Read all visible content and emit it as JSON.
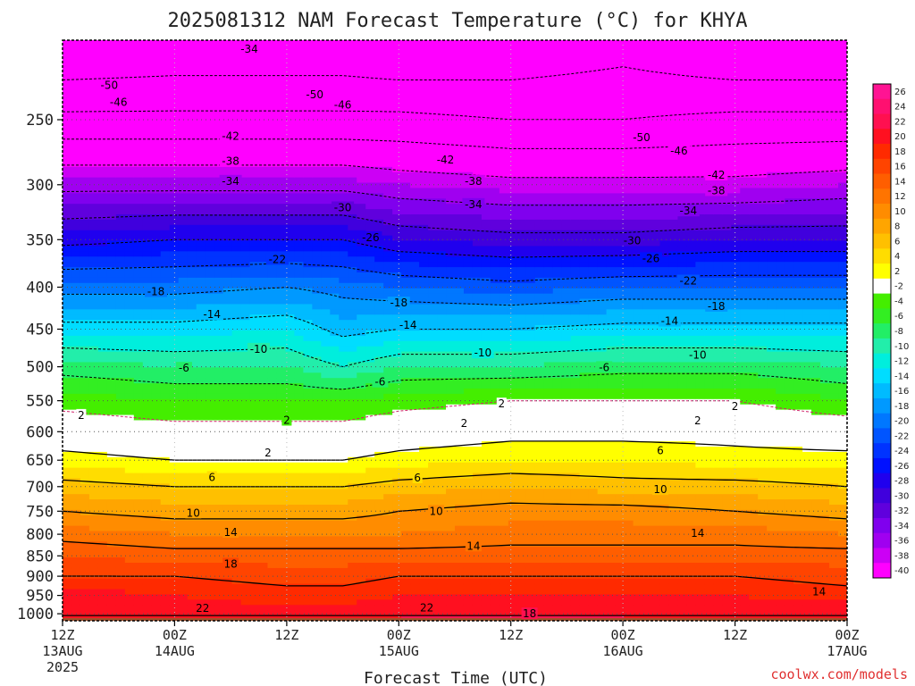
{
  "title": "2025081312 NAM Forecast Temperature (°C) for KHYA",
  "credit": "coolwx.com/models",
  "chart_data": {
    "type": "heatmap",
    "title": "2025081312 NAM Forecast Temperature (°C) for KHYA",
    "xlabel": "Forecast Time (UTC)",
    "ylabel": "",
    "x_ticks": [
      {
        "l1": "12Z",
        "l2": "13AUG",
        "l3": "2025",
        "h": 0
      },
      {
        "l1": "00Z",
        "l2": "14AUG",
        "l3": "",
        "h": 12
      },
      {
        "l1": "12Z",
        "l2": "",
        "l3": "",
        "h": 24
      },
      {
        "l1": "00Z",
        "l2": "15AUG",
        "l3": "",
        "h": 36
      },
      {
        "l1": "12Z",
        "l2": "",
        "l3": "",
        "h": 48
      },
      {
        "l1": "00Z",
        "l2": "16AUG",
        "l3": "",
        "h": 60
      },
      {
        "l1": "12Z",
        "l2": "",
        "l3": "",
        "h": 72
      },
      {
        "l1": "00Z",
        "l2": "17AUG",
        "l3": "",
        "h": 84
      }
    ],
    "y_ticks": [
      250,
      300,
      350,
      400,
      450,
      500,
      550,
      600,
      650,
      700,
      750,
      800,
      850,
      900,
      950,
      1000
    ],
    "xlim_hours": [
      0,
      84
    ],
    "ylim_hpa": [
      1020,
      200
    ],
    "ground_level_hpa": 1012,
    "ground_color": "#a0522d",
    "colorbar": {
      "levels": [
        26,
        24,
        22,
        20,
        18,
        16,
        14,
        12,
        10,
        8,
        6,
        4,
        2,
        -2,
        -4,
        -6,
        -8,
        -10,
        -12,
        -14,
        -16,
        -18,
        -20,
        -22,
        -24,
        -26,
        -28,
        -30,
        -32,
        -34,
        -36,
        -38,
        -40
      ],
      "colors": [
        "#ff1493",
        "#ff1070",
        "#ff1050",
        "#ff1020",
        "#ff2a00",
        "#ff4400",
        "#ff5e00",
        "#ff7400",
        "#ff8c00",
        "#ffa500",
        "#ffc000",
        "#ffdd00",
        "#ffff00",
        "#ffffff",
        "#44ee00",
        "#33ee22",
        "#22ee66",
        "#22eeaa",
        "#00eedd",
        "#00ddff",
        "#00bbff",
        "#0099ff",
        "#0077ff",
        "#0055ff",
        "#0033ff",
        "#0011ff",
        "#2000ee",
        "#4000dd",
        "#6000dd",
        "#8000ee",
        "#a000f0",
        "#cc00f5",
        "#ff00ff"
      ]
    },
    "band_colors_by_temp": [
      {
        "t": 26,
        "c": "#ff1493"
      },
      {
        "t": 22,
        "c": "#ff1050"
      },
      {
        "t": 18,
        "c": "#ff2a00"
      },
      {
        "t": 14,
        "c": "#ff5e00"
      },
      {
        "t": 10,
        "c": "#ff8c00"
      },
      {
        "t": 6,
        "c": "#ffc000"
      },
      {
        "t": 2,
        "c": "#ffff00"
      },
      {
        "t": 0,
        "c": "#ffffff"
      },
      {
        "t": -2,
        "c": "#ffffff"
      },
      {
        "t": -4,
        "c": "#44ee00"
      },
      {
        "t": -8,
        "c": "#22ee66"
      },
      {
        "t": -12,
        "c": "#00eedd"
      },
      {
        "t": -16,
        "c": "#00bbff"
      },
      {
        "t": -20,
        "c": "#0077ff"
      },
      {
        "t": -24,
        "c": "#0033ff"
      },
      {
        "t": -28,
        "c": "#2000ee"
      },
      {
        "t": -32,
        "c": "#6000dd"
      },
      {
        "t": -36,
        "c": "#a000f0"
      },
      {
        "t": -40,
        "c": "#ff00ff"
      }
    ],
    "profile_hpa": [
      1000,
      950,
      900,
      850,
      800,
      750,
      700,
      650,
      600,
      550,
      500,
      450,
      400,
      350,
      300,
      250,
      200
    ],
    "profiles": [
      {
        "h": 0,
        "t": [
          22,
          21,
          18,
          16,
          13,
          10,
          7,
          3,
          0,
          -3,
          -7,
          -13,
          -19,
          -27,
          -35,
          -45,
          -55
        ]
      },
      {
        "h": 12,
        "t": [
          21,
          20,
          18,
          15,
          12,
          9,
          6,
          2,
          -1,
          -4,
          -8,
          -13,
          -19,
          -26,
          -35,
          -45,
          -54
        ]
      },
      {
        "h": 24,
        "t": [
          21,
          19,
          17,
          15,
          12,
          9,
          6,
          2,
          -1,
          -4,
          -8,
          -12,
          -18,
          -26,
          -35,
          -45,
          -54
        ]
      },
      {
        "h": 30,
        "t": [
          21,
          19,
          17,
          15,
          12,
          9,
          6,
          2,
          -1,
          -4,
          -10,
          -15,
          -19,
          -26,
          -35,
          -45,
          -54
        ]
      },
      {
        "h": 36,
        "t": [
          22,
          20,
          18,
          15,
          12,
          10,
          7,
          3,
          0,
          -3,
          -8,
          -14,
          -20,
          -28,
          -36,
          -45,
          -55
        ]
      },
      {
        "h": 48,
        "t": [
          22,
          20,
          18,
          15,
          13,
          11,
          8,
          4,
          1,
          -2,
          -8,
          -14,
          -21,
          -29,
          -37,
          -46,
          -54
        ]
      },
      {
        "h": 60,
        "t": [
          22,
          20,
          18,
          15,
          13,
          11,
          7,
          4,
          1,
          -2,
          -7,
          -13,
          -20,
          -29,
          -37,
          -46,
          -52
        ]
      },
      {
        "h": 72,
        "t": [
          21,
          20,
          18,
          15,
          13,
          10,
          7,
          3,
          1,
          -2,
          -7,
          -13,
          -20,
          -28,
          -37,
          -45,
          -55
        ]
      },
      {
        "h": 84,
        "t": [
          22,
          19,
          17,
          15,
          12,
          9,
          6,
          3,
          0,
          -4,
          -8,
          -13,
          -20,
          -28,
          -36,
          -45,
          -55
        ]
      }
    ],
    "contour_labels": [
      {
        "t": "-50",
        "h": 5,
        "p": 227
      },
      {
        "t": "-50",
        "h": 27,
        "p": 233
      },
      {
        "t": "-50",
        "h": 62,
        "p": 263
      },
      {
        "t": "-46",
        "h": 6,
        "p": 238
      },
      {
        "t": "-46",
        "h": 30,
        "p": 240
      },
      {
        "t": "-46",
        "h": 66,
        "p": 273
      },
      {
        "t": "-42",
        "h": 18,
        "p": 262
      },
      {
        "t": "-42",
        "h": 41,
        "p": 280
      },
      {
        "t": "-42",
        "h": 70,
        "p": 292
      },
      {
        "t": "-38",
        "h": 18,
        "p": 281
      },
      {
        "t": "-38",
        "h": 44,
        "p": 297
      },
      {
        "t": "-38",
        "h": 70,
        "p": 305
      },
      {
        "t": "-34",
        "h": 18,
        "p": 297
      },
      {
        "t": "-34",
        "h": 44,
        "p": 317
      },
      {
        "t": "-34",
        "h": 67,
        "p": 323
      },
      {
        "t": "-30",
        "h": 30,
        "p": 320
      },
      {
        "t": "-30",
        "h": 61,
        "p": 351
      },
      {
        "t": "-26",
        "h": 33,
        "p": 348
      },
      {
        "t": "-26",
        "h": 63,
        "p": 369
      },
      {
        "t": "-22",
        "h": 23,
        "p": 370
      },
      {
        "t": "-22",
        "h": 67,
        "p": 393
      },
      {
        "t": "-18",
        "h": 10,
        "p": 405
      },
      {
        "t": "-18",
        "h": 36,
        "p": 418
      },
      {
        "t": "-18",
        "h": 70,
        "p": 422
      },
      {
        "t": "-14",
        "h": 16,
        "p": 432
      },
      {
        "t": "-14",
        "h": 37,
        "p": 445
      },
      {
        "t": "-14",
        "h": 65,
        "p": 440
      },
      {
        "t": "-10",
        "h": 21,
        "p": 476
      },
      {
        "t": "-10",
        "h": 45,
        "p": 481
      },
      {
        "t": "-10",
        "h": 68,
        "p": 484
      },
      {
        "t": "-6",
        "h": 13,
        "p": 502
      },
      {
        "t": "-6",
        "h": 34,
        "p": 522
      },
      {
        "t": "-6",
        "h": 58,
        "p": 501
      },
      {
        "t": "2",
        "h": 2,
        "p": 573
      },
      {
        "t": "2",
        "h": 24,
        "p": 581
      },
      {
        "t": "2",
        "h": 47,
        "p": 555
      },
      {
        "t": "2",
        "h": 72,
        "p": 559
      },
      {
        "t": "2",
        "h": 43,
        "p": 586
      },
      {
        "t": "2",
        "h": 68,
        "p": 582
      },
      {
        "t": "2",
        "h": 22,
        "p": 637
      },
      {
        "t": "6",
        "h": 16,
        "p": 682
      },
      {
        "t": "6",
        "h": 38,
        "p": 683
      },
      {
        "t": "6",
        "h": 64,
        "p": 633
      },
      {
        "t": "10",
        "h": 14,
        "p": 754
      },
      {
        "t": "10",
        "h": 40,
        "p": 750
      },
      {
        "t": "10",
        "h": 64,
        "p": 706
      },
      {
        "t": "14",
        "h": 18,
        "p": 796
      },
      {
        "t": "14",
        "h": 44,
        "p": 827
      },
      {
        "t": "14",
        "h": 68,
        "p": 798
      },
      {
        "t": "14",
        "h": 81,
        "p": 940
      },
      {
        "t": "18",
        "h": 18,
        "p": 870
      },
      {
        "t": "18",
        "h": 50,
        "p": 1000
      },
      {
        "t": "22",
        "h": 15,
        "p": 985
      },
      {
        "t": "22",
        "h": 39,
        "p": 983
      },
      {
        "t": "-34",
        "h": 20,
        "p": 205
      }
    ]
  }
}
